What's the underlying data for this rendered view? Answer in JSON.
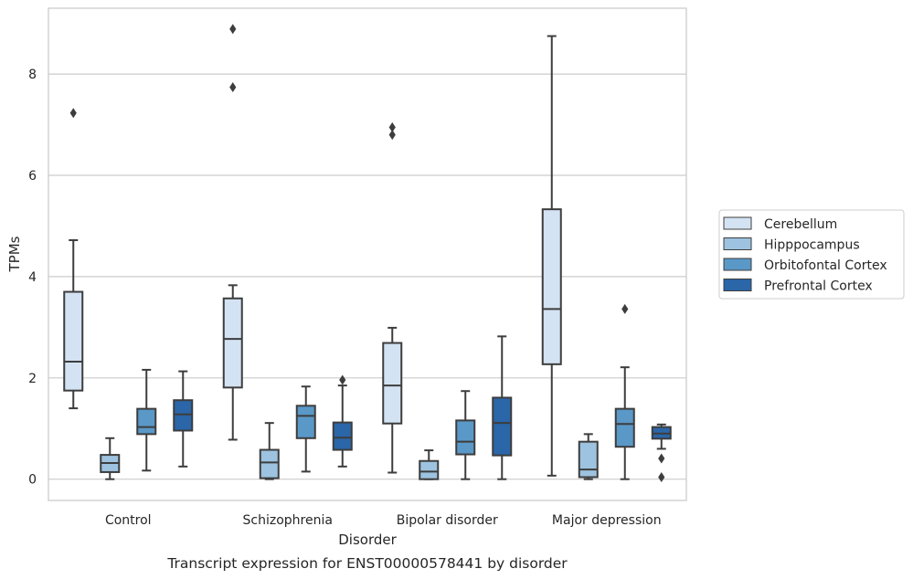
{
  "caption": "Transcript expression for ENST00000578441 by disorder",
  "chart_data": {
    "type": "box",
    "xlabel": "Disorder",
    "ylabel": "TPMs",
    "ylim": [
      -0.42,
      9.3
    ],
    "yticks": [
      0,
      2,
      4,
      6,
      8
    ],
    "grid": "horizontal",
    "legend_position": "right",
    "categories": [
      "Control",
      "Schizophrenia",
      "Bipolar disorder",
      "Major depression"
    ],
    "series": [
      {
        "name": "Cerebellum",
        "color": "#d4e3f3",
        "boxes": [
          {
            "whisker_low": 1.4,
            "q1": 1.75,
            "median": 2.32,
            "q3": 3.7,
            "whisker_high": 4.72,
            "outliers": [
              7.23
            ]
          },
          {
            "whisker_low": 0.78,
            "q1": 1.81,
            "median": 2.77,
            "q3": 3.57,
            "whisker_high": 3.83,
            "outliers": [
              7.74,
              8.89
            ]
          },
          {
            "whisker_low": 0.13,
            "q1": 1.1,
            "median": 1.85,
            "q3": 2.69,
            "whisker_high": 2.99,
            "outliers": [
              6.8,
              6.95
            ]
          },
          {
            "whisker_low": 0.07,
            "q1": 2.27,
            "median": 3.36,
            "q3": 5.33,
            "whisker_high": 8.75,
            "outliers": []
          }
        ]
      },
      {
        "name": "Hipppocampus",
        "color": "#9dc3e0",
        "boxes": [
          {
            "whisker_low": 0.0,
            "q1": 0.14,
            "median": 0.32,
            "q3": 0.48,
            "whisker_high": 0.81,
            "outliers": []
          },
          {
            "whisker_low": 0.0,
            "q1": 0.02,
            "median": 0.33,
            "q3": 0.58,
            "whisker_high": 1.11,
            "outliers": []
          },
          {
            "whisker_low": 0.0,
            "q1": 0.0,
            "median": 0.15,
            "q3": 0.36,
            "whisker_high": 0.57,
            "outliers": []
          },
          {
            "whisker_low": 0.0,
            "q1": 0.04,
            "median": 0.19,
            "q3": 0.74,
            "whisker_high": 0.89,
            "outliers": []
          }
        ]
      },
      {
        "name": "Orbitofontal Cortex",
        "color": "#5a98c7",
        "boxes": [
          {
            "whisker_low": 0.17,
            "q1": 0.89,
            "median": 1.03,
            "q3": 1.39,
            "whisker_high": 2.16,
            "outliers": []
          },
          {
            "whisker_low": 0.15,
            "q1": 0.81,
            "median": 1.25,
            "q3": 1.45,
            "whisker_high": 1.83,
            "outliers": []
          },
          {
            "whisker_low": 0.0,
            "q1": 0.49,
            "median": 0.74,
            "q3": 1.16,
            "whisker_high": 1.74,
            "outliers": []
          },
          {
            "whisker_low": 0.0,
            "q1": 0.64,
            "median": 1.09,
            "q3": 1.39,
            "whisker_high": 2.21,
            "outliers": [
              3.36
            ]
          }
        ]
      },
      {
        "name": "Prefrontal Cortex",
        "color": "#2a66a8",
        "boxes": [
          {
            "whisker_low": 0.25,
            "q1": 0.96,
            "median": 1.28,
            "q3": 1.56,
            "whisker_high": 2.13,
            "outliers": []
          },
          {
            "whisker_low": 0.25,
            "q1": 0.58,
            "median": 0.82,
            "q3": 1.12,
            "whisker_high": 1.85,
            "outliers": [
              1.96
            ]
          },
          {
            "whisker_low": 0.0,
            "q1": 0.47,
            "median": 1.11,
            "q3": 1.61,
            "whisker_high": 2.82,
            "outliers": []
          },
          {
            "whisker_low": 0.6,
            "q1": 0.8,
            "median": 0.9,
            "q3": 1.03,
            "whisker_high": 1.08,
            "outliers": [
              0.41,
              0.04
            ]
          }
        ]
      }
    ]
  }
}
